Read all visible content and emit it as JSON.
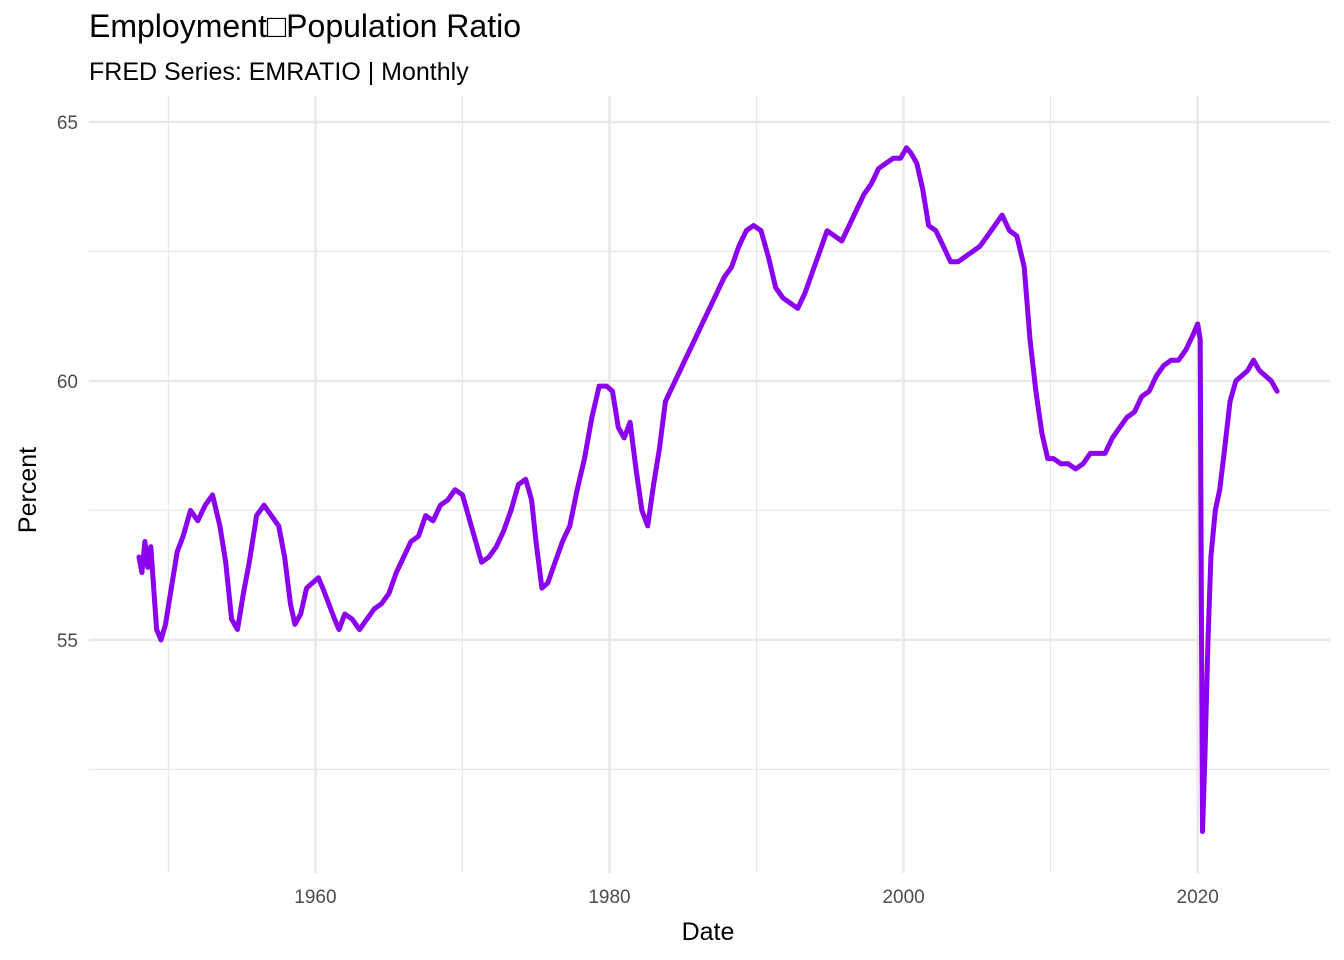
{
  "chart_data": {
    "type": "line",
    "title": "Employment□Population Ratio",
    "subtitle": "FRED Series: EMRATIO | Monthly",
    "xlabel": "Date",
    "ylabel": "Percent",
    "x_ticks": [
      1960,
      1980,
      2000,
      2020
    ],
    "y_ticks": [
      55,
      60,
      65
    ],
    "xlim": [
      1944.6,
      2029.0
    ],
    "ylim": [
      50.5,
      65.5
    ],
    "grid": true,
    "colors": {
      "line": "#8B00EE",
      "grid": "#e8e8e8",
      "background": "#ffffff"
    },
    "series": [
      {
        "x": [
          1948.0,
          1948.2,
          1948.4,
          1948.6,
          1948.8,
          1949.0,
          1949.2,
          1949.5,
          1949.8,
          1950.2,
          1950.6,
          1951.0,
          1951.5,
          1952.0,
          1952.5,
          1953.0,
          1953.5,
          1953.9,
          1954.3,
          1954.7,
          1955.1,
          1955.5,
          1956.0,
          1956.5,
          1957.0,
          1957.5,
          1957.9,
          1958.3,
          1958.6,
          1959.0,
          1959.4,
          1959.8,
          1960.2,
          1960.5,
          1960.9,
          1961.3,
          1961.6,
          1962.0,
          1962.5,
          1963.0,
          1963.5,
          1964.0,
          1964.5,
          1965.0,
          1965.5,
          1966.0,
          1966.5,
          1967.0,
          1967.5,
          1968.0,
          1968.5,
          1969.0,
          1969.5,
          1970.0,
          1970.5,
          1970.9,
          1971.3,
          1971.8,
          1972.3,
          1972.8,
          1973.3,
          1973.8,
          1974.3,
          1974.7,
          1975.0,
          1975.4,
          1975.8,
          1976.3,
          1976.8,
          1977.3,
          1977.8,
          1978.3,
          1978.8,
          1979.3,
          1979.8,
          1980.2,
          1980.6,
          1981.0,
          1981.4,
          1981.8,
          1982.2,
          1982.6,
          1983.0,
          1983.4,
          1983.8,
          1984.3,
          1984.8,
          1985.3,
          1985.8,
          1986.3,
          1986.8,
          1987.3,
          1987.8,
          1988.3,
          1988.8,
          1989.3,
          1989.8,
          1990.3,
          1990.8,
          1991.3,
          1991.8,
          1992.3,
          1992.8,
          1993.3,
          1993.8,
          1994.3,
          1994.8,
          1995.3,
          1995.8,
          1996.3,
          1996.8,
          1997.3,
          1997.8,
          1998.3,
          1998.8,
          1999.3,
          1999.8,
          2000.2,
          2000.5,
          2000.9,
          2001.3,
          2001.7,
          2002.2,
          2002.7,
          2003.2,
          2003.7,
          2004.2,
          2004.7,
          2005.2,
          2005.7,
          2006.2,
          2006.7,
          2007.2,
          2007.7,
          2008.2,
          2008.6,
          2009.0,
          2009.4,
          2009.8,
          2010.2,
          2010.7,
          2011.2,
          2011.7,
          2012.2,
          2012.7,
          2013.2,
          2013.7,
          2014.2,
          2014.7,
          2015.2,
          2015.7,
          2016.2,
          2016.7,
          2017.2,
          2017.7,
          2018.2,
          2018.7,
          2019.2,
          2019.7,
          2020.0,
          2020.17,
          2020.25,
          2020.33,
          2020.5,
          2020.7,
          2020.9,
          2021.2,
          2021.5,
          2021.8,
          2022.2,
          2022.6,
          2023.0,
          2023.4,
          2023.8,
          2024.2,
          2024.6,
          2025.0,
          2025.4
        ],
        "y": [
          56.6,
          56.3,
          56.9,
          56.4,
          56.8,
          56.0,
          55.2,
          55.0,
          55.3,
          56.0,
          56.7,
          57.0,
          57.5,
          57.3,
          57.6,
          57.8,
          57.2,
          56.5,
          55.4,
          55.2,
          55.9,
          56.5,
          57.4,
          57.6,
          57.4,
          57.2,
          56.6,
          55.7,
          55.3,
          55.5,
          56.0,
          56.1,
          56.2,
          56.0,
          55.7,
          55.4,
          55.2,
          55.5,
          55.4,
          55.2,
          55.4,
          55.6,
          55.7,
          55.9,
          56.3,
          56.6,
          56.9,
          57.0,
          57.4,
          57.3,
          57.6,
          57.7,
          57.9,
          57.8,
          57.3,
          56.9,
          56.5,
          56.6,
          56.8,
          57.1,
          57.5,
          58.0,
          58.1,
          57.7,
          56.9,
          56.0,
          56.1,
          56.5,
          56.9,
          57.2,
          57.9,
          58.5,
          59.3,
          59.9,
          59.9,
          59.8,
          59.1,
          58.9,
          59.2,
          58.3,
          57.5,
          57.2,
          58.0,
          58.7,
          59.6,
          59.9,
          60.2,
          60.5,
          60.8,
          61.1,
          61.4,
          61.7,
          62.0,
          62.2,
          62.6,
          62.9,
          63.0,
          62.9,
          62.4,
          61.8,
          61.6,
          61.5,
          61.4,
          61.7,
          62.1,
          62.5,
          62.9,
          62.8,
          62.7,
          63.0,
          63.3,
          63.6,
          63.8,
          64.1,
          64.2,
          64.3,
          64.3,
          64.5,
          64.4,
          64.2,
          63.7,
          63.0,
          62.9,
          62.6,
          62.3,
          62.3,
          62.4,
          62.5,
          62.6,
          62.8,
          63.0,
          63.2,
          62.9,
          62.8,
          62.2,
          60.8,
          59.8,
          59.0,
          58.5,
          58.5,
          58.4,
          58.4,
          58.3,
          58.4,
          58.6,
          58.6,
          58.6,
          58.9,
          59.1,
          59.3,
          59.4,
          59.7,
          59.8,
          60.1,
          60.3,
          60.4,
          60.4,
          60.6,
          60.9,
          61.1,
          60.8,
          56.0,
          51.3,
          52.8,
          55.0,
          56.6,
          57.5,
          57.9,
          58.6,
          59.6,
          60.0,
          60.1,
          60.2,
          60.4,
          60.2,
          60.1,
          60.0,
          59.8
        ]
      }
    ]
  }
}
